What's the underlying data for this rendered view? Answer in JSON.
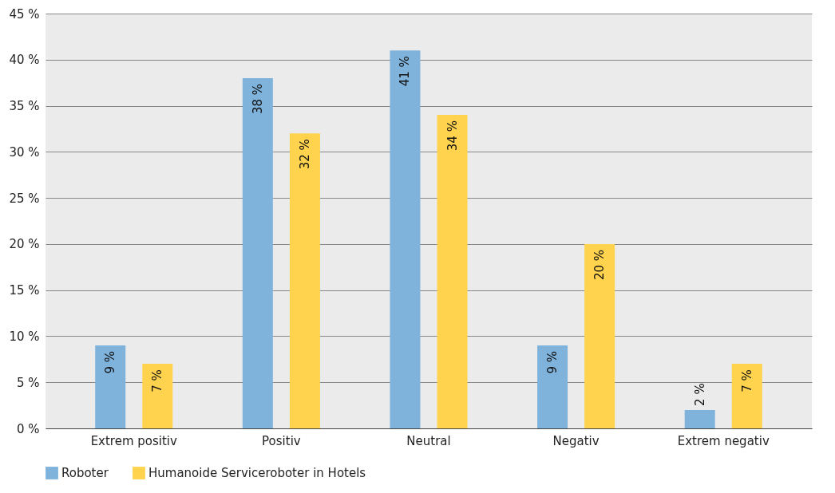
{
  "chart_data": {
    "type": "bar",
    "categories": [
      "Extrem positiv",
      "Positiv",
      "Neutral",
      "Negativ",
      "Extrem negativ"
    ],
    "series": [
      {
        "name": "Roboter",
        "color": "#7fb3dc",
        "values": [
          9,
          38,
          41,
          9,
          2
        ],
        "value_labels": [
          "9 %",
          "38 %",
          "41 %",
          "9 %",
          "2 %"
        ]
      },
      {
        "name": "Humanoide Serviceroboter in Hotels",
        "color": "#ffd34d",
        "values": [
          7,
          32,
          34,
          20,
          7
        ],
        "value_labels": [
          "7 %",
          "32 %",
          "34 %",
          "20 %",
          "7 %"
        ]
      }
    ],
    "ylim": [
      0,
      45
    ],
    "yticks": [
      {
        "value": 0,
        "label": "0 %"
      },
      {
        "value": 5,
        "label": "5 %"
      },
      {
        "value": 10,
        "label": "10 %"
      },
      {
        "value": 15,
        "label": "15 %"
      },
      {
        "value": 20,
        "label": "20 %"
      },
      {
        "value": 25,
        "label": "25 %"
      },
      {
        "value": 30,
        "label": "30 %"
      },
      {
        "value": 35,
        "label": "35 %"
      },
      {
        "value": 40,
        "label": "40 %"
      },
      {
        "value": 45,
        "label": "45 %"
      }
    ],
    "grid": "y",
    "legend": "bottom"
  }
}
